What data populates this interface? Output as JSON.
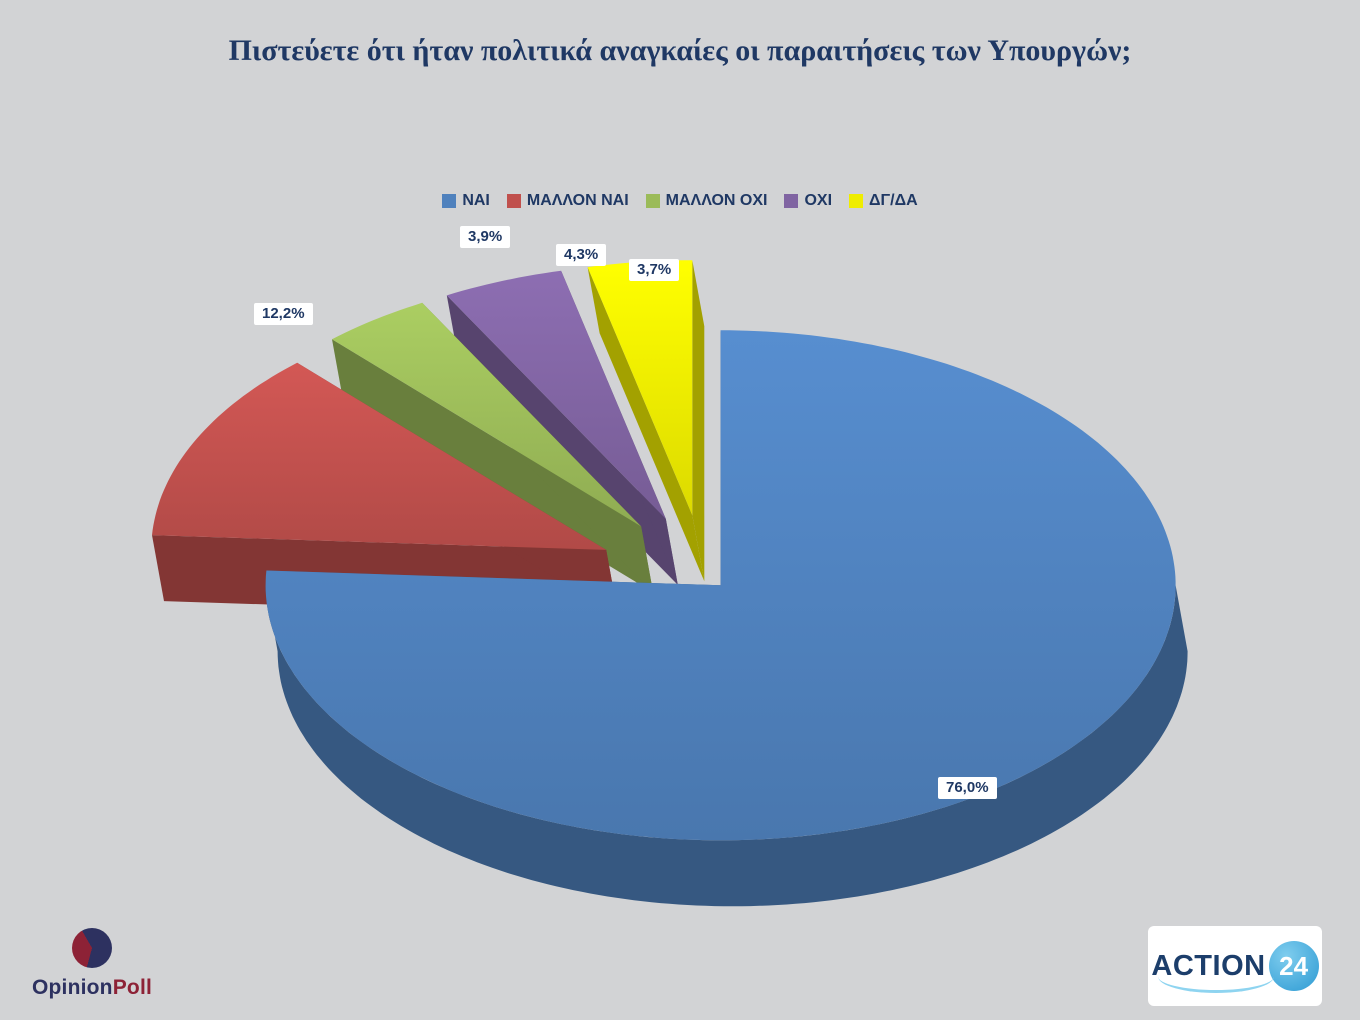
{
  "title": "Πιστεύετε ότι ήταν πολιτικά αναγκαίες οι παραιτήσεις των Υπουργών;",
  "chart_data": {
    "type": "pie",
    "style_3d": true,
    "exploded": true,
    "title": "Πιστεύετε ότι ήταν πολιτικά αναγκαίες οι παραιτήσεις των Υπουργών;",
    "legend_position": "top-center",
    "start_angle_deg": 0,
    "direction": "clockwise",
    "value_suffix": "%",
    "slices": [
      {
        "label": "ΝΑΙ",
        "value": 76.0,
        "display": "76,0%",
        "color": "#4f81bd",
        "explode": 0.05
      },
      {
        "label": "ΜΑΛΛΟΝ ΝΑΙ",
        "value": 12.2,
        "display": "12,2%",
        "color": "#c0504d",
        "explode": 0.24
      },
      {
        "label": "ΜΑΛΛΟΝ ΟΧΙ",
        "value": 3.9,
        "display": "3,9%",
        "color": "#9bbb59",
        "explode": 0.24
      },
      {
        "label": "ΟΧΙ",
        "value": 4.3,
        "display": "4,3%",
        "color": "#8064a2",
        "explode": 0.24
      },
      {
        "label": "ΔΓ/ΔΑ",
        "value": 3.7,
        "display": "3,7%",
        "color": "#efed00",
        "explode": 0.24
      }
    ]
  },
  "colors": {
    "background": "#d2d3d5",
    "title_text": "#1f3864",
    "label_text": "#1f3864",
    "label_bg": "#ffffff"
  },
  "footer": {
    "opinion_poll": {
      "text_primary": "Opinion",
      "text_secondary": "Poll",
      "color_primary": "#2d3160",
      "color_secondary": "#8d2236",
      "pie_colors": [
        "#2d3160",
        "#8d2236"
      ]
    },
    "action24": {
      "name": "ACTION",
      "number": "24",
      "name_color": "#1c3e6b",
      "circle_color": "#2d9ad3",
      "box_bg": "#ffffff",
      "swoosh_color": "#8ed4f0"
    }
  }
}
